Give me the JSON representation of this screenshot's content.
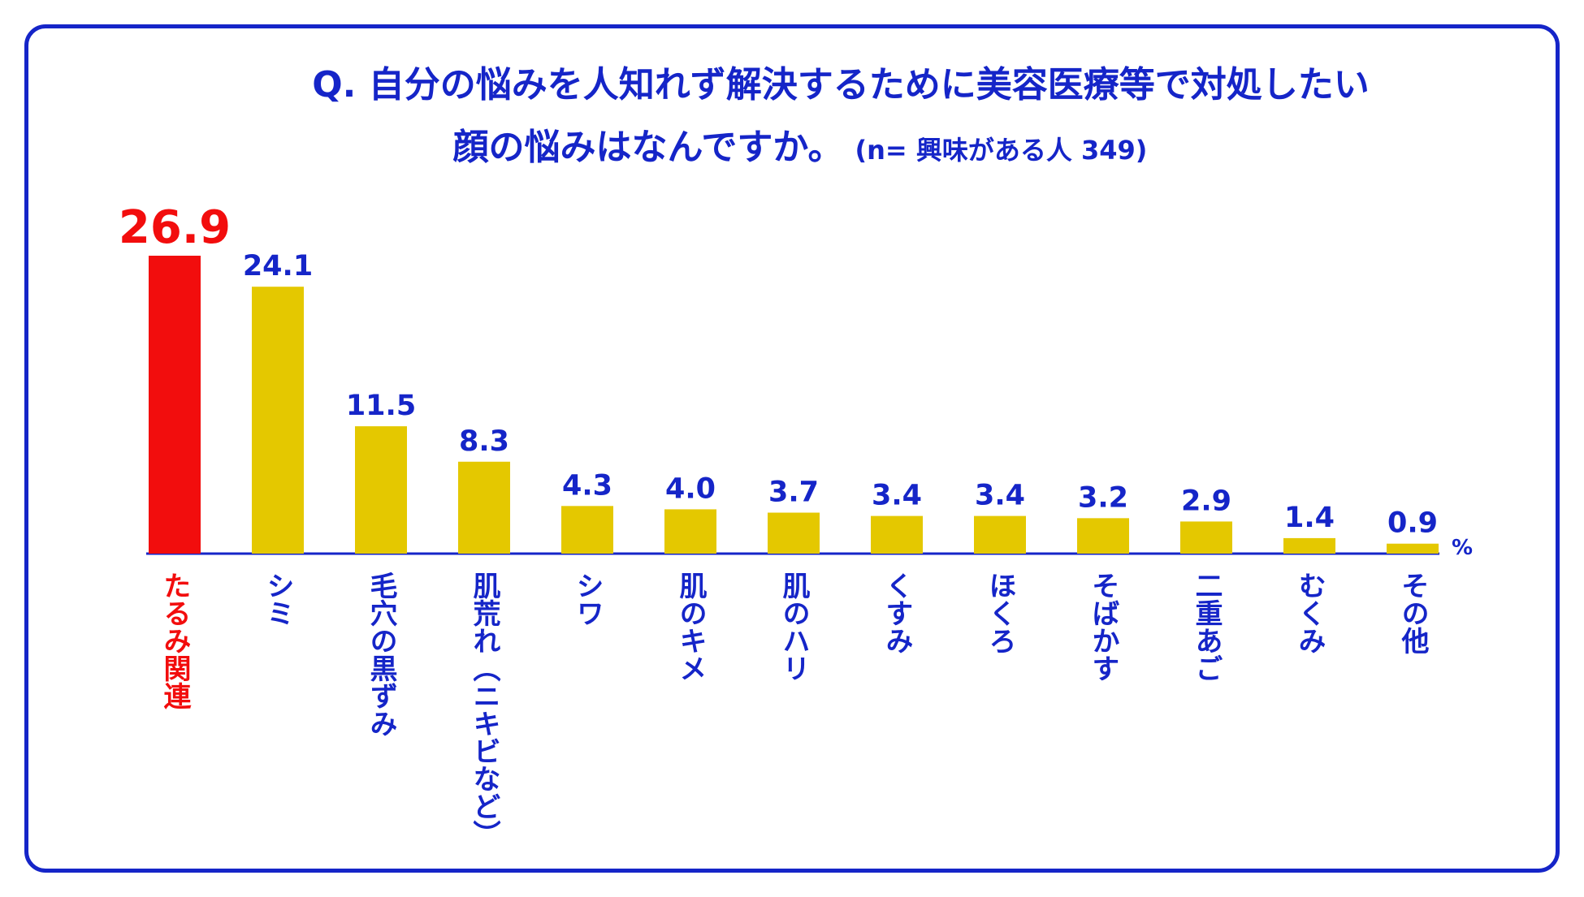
{
  "title_line1": "Q. 自分の悩みを人知れず解決するために美容医療等で対処したい",
  "title_line2": "顔の悩みはなんですか。",
  "title_note": "(n= 興味がある人 349)",
  "colors": {
    "frame": "#1525c8",
    "text": "#1525c8",
    "highlight": "#f20d0d",
    "bar": "#e4c800",
    "axis": "#1525c8"
  },
  "chart_data": {
    "type": "bar",
    "categories": [
      "たるみ関連",
      "シミ",
      "毛穴の黒ずみ",
      "肌荒れ（ニキビなど）",
      "シワ",
      "肌のキメ",
      "肌のハリ",
      "くすみ",
      "ほくろ",
      "そばかす",
      "二重あご",
      "むくみ",
      "その他"
    ],
    "values": [
      26.9,
      24.1,
      11.5,
      8.3,
      4.3,
      4.0,
      3.7,
      3.4,
      3.4,
      3.2,
      2.9,
      1.4,
      0.9
    ],
    "value_labels": [
      "26.9",
      "24.1",
      "11.5",
      "8.3",
      "4.3",
      "4.0",
      "3.7",
      "3.4",
      "3.4",
      "3.2",
      "2.9",
      "1.4",
      "0.9"
    ],
    "highlight_index": 0,
    "unit": "%",
    "title": "Q. 自分の悩みを人知れず解決するために美容医療等で対処したい顔の悩みはなんですか。",
    "ylim": [
      0,
      26.9
    ],
    "grid": false,
    "legend": "none"
  }
}
